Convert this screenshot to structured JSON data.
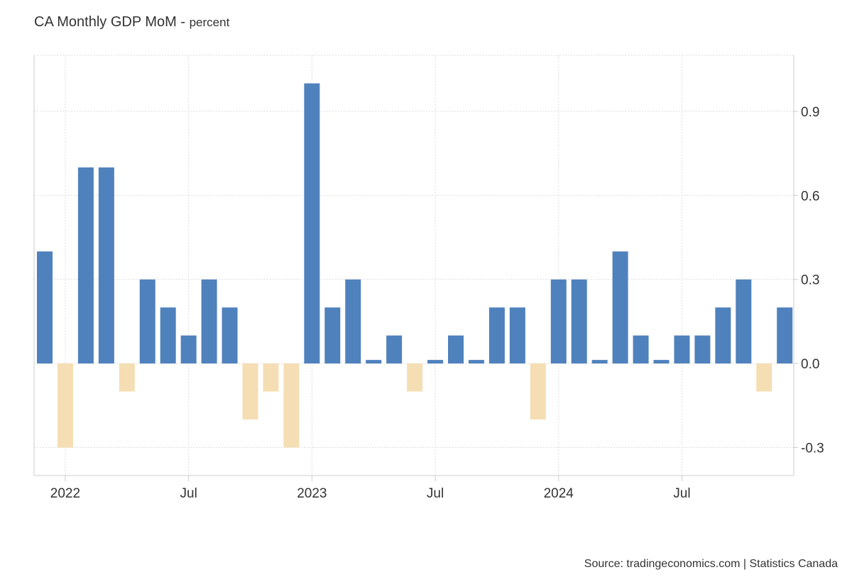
{
  "chart_data": {
    "type": "bar",
    "title": "CA Monthly GDP MoM",
    "subtitle": "percent",
    "categories": [
      "Dec 2021",
      "Jan 2022",
      "Feb 2022",
      "Mar 2022",
      "Apr 2022",
      "May 2022",
      "Jun 2022",
      "Jul 2022",
      "Aug 2022",
      "Sep 2022",
      "Oct 2022",
      "Nov 2022",
      "Dec 2022",
      "Jan 2023",
      "Feb 2023",
      "Mar 2023",
      "Apr 2023",
      "May 2023",
      "Jun 2023",
      "Jul 2023",
      "Aug 2023",
      "Sep 2023",
      "Oct 2023",
      "Nov 2023",
      "Dec 2023",
      "Jan 2024",
      "Feb 2024",
      "Mar 2024",
      "Apr 2024",
      "May 2024",
      "Jun 2024",
      "Jul 2024",
      "Aug 2024",
      "Sep 2024",
      "Oct 2024",
      "Nov 2024",
      "Dec 2024"
    ],
    "values": [
      0.4,
      -0.3,
      0.7,
      0.7,
      -0.1,
      0.3,
      0.2,
      0.1,
      0.3,
      0.2,
      -0.2,
      -0.1,
      -0.3,
      1.0,
      0.2,
      0.3,
      0.0,
      0.1,
      -0.1,
      0.0,
      0.1,
      0.0,
      0.2,
      0.2,
      -0.2,
      0.3,
      0.3,
      0.0,
      0.4,
      0.1,
      0.0,
      0.1,
      0.1,
      0.2,
      0.3,
      -0.1,
      0.2
    ],
    "x_ticks": [
      {
        "label": "2022",
        "category": "Jan 2022"
      },
      {
        "label": "Jul",
        "category": "Jul 2022"
      },
      {
        "label": "2023",
        "category": "Jan 2023"
      },
      {
        "label": "Jul",
        "category": "Jul 2023"
      },
      {
        "label": "2024",
        "category": "Jan 2024"
      },
      {
        "label": "Jul",
        "category": "Jul 2024"
      }
    ],
    "y_ticks": [
      "0.9",
      "0.6",
      "0.3",
      "0.0",
      "-0.3"
    ],
    "ylim": [
      -0.4,
      1.1
    ],
    "grid": true,
    "y_axis_side": "right",
    "colors": {
      "positive": "#4f81bd",
      "negative": "#f5deb3",
      "grid": "#dddddd"
    },
    "source": "Source: tradingeconomics.com | Statistics Canada"
  }
}
